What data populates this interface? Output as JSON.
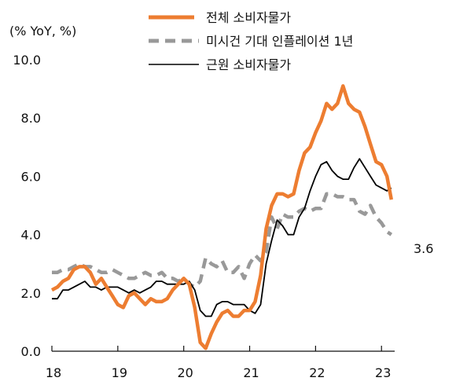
{
  "chart_data": {
    "type": "line",
    "ylabel": "(% YoY, %)",
    "x_tick_labels": [
      "18",
      "19",
      "20",
      "21",
      "22",
      "23"
    ],
    "x_tick_values": [
      2018,
      2019,
      2020,
      2021,
      2022,
      2023
    ],
    "y_tick_labels": [
      "0.0",
      "2.0",
      "4.0",
      "6.0",
      "8.0",
      "10.0"
    ],
    "y_tick_values": [
      0,
      2,
      4,
      6,
      8,
      10
    ],
    "xlim": [
      2018,
      2023.2
    ],
    "ylim": [
      0,
      10
    ],
    "grid": false,
    "legend_position": "top-right",
    "annotation": "3.6",
    "series": [
      {
        "name": "전체 소비자물가",
        "color": "#ed7d31",
        "style": "solid-thick",
        "points": [
          [
            2018.0,
            2.1
          ],
          [
            2018.083,
            2.2
          ],
          [
            2018.167,
            2.4
          ],
          [
            2018.25,
            2.5
          ],
          [
            2018.333,
            2.8
          ],
          [
            2018.417,
            2.9
          ],
          [
            2018.5,
            2.9
          ],
          [
            2018.583,
            2.7
          ],
          [
            2018.667,
            2.3
          ],
          [
            2018.75,
            2.5
          ],
          [
            2018.833,
            2.2
          ],
          [
            2018.917,
            1.9
          ],
          [
            2019.0,
            1.6
          ],
          [
            2019.083,
            1.5
          ],
          [
            2019.167,
            1.9
          ],
          [
            2019.25,
            2.0
          ],
          [
            2019.333,
            1.8
          ],
          [
            2019.417,
            1.6
          ],
          [
            2019.5,
            1.8
          ],
          [
            2019.583,
            1.7
          ],
          [
            2019.667,
            1.7
          ],
          [
            2019.75,
            1.8
          ],
          [
            2019.833,
            2.1
          ],
          [
            2019.917,
            2.3
          ],
          [
            2020.0,
            2.5
          ],
          [
            2020.083,
            2.3
          ],
          [
            2020.167,
            1.5
          ],
          [
            2020.25,
            0.3
          ],
          [
            2020.333,
            0.1
          ],
          [
            2020.417,
            0.6
          ],
          [
            2020.5,
            1.0
          ],
          [
            2020.583,
            1.3
          ],
          [
            2020.667,
            1.4
          ],
          [
            2020.75,
            1.2
          ],
          [
            2020.833,
            1.2
          ],
          [
            2020.917,
            1.4
          ],
          [
            2021.0,
            1.4
          ],
          [
            2021.083,
            1.7
          ],
          [
            2021.167,
            2.6
          ],
          [
            2021.25,
            4.2
          ],
          [
            2021.333,
            5.0
          ],
          [
            2021.417,
            5.4
          ],
          [
            2021.5,
            5.4
          ],
          [
            2021.583,
            5.3
          ],
          [
            2021.667,
            5.4
          ],
          [
            2021.75,
            6.2
          ],
          [
            2021.833,
            6.8
          ],
          [
            2021.917,
            7.0
          ],
          [
            2022.0,
            7.5
          ],
          [
            2022.083,
            7.9
          ],
          [
            2022.167,
            8.5
          ],
          [
            2022.25,
            8.3
          ],
          [
            2022.333,
            8.5
          ],
          [
            2022.417,
            9.1
          ],
          [
            2022.5,
            8.5
          ],
          [
            2022.583,
            8.3
          ],
          [
            2022.667,
            8.2
          ],
          [
            2022.75,
            7.7
          ],
          [
            2022.833,
            7.1
          ],
          [
            2022.917,
            6.5
          ],
          [
            2023.0,
            6.4
          ],
          [
            2023.083,
            6.0
          ],
          [
            2023.15,
            5.2
          ]
        ]
      },
      {
        "name": "미시건 기대 인플레이션 1년",
        "color": "#999999",
        "style": "dashed",
        "points": [
          [
            2018.0,
            2.7
          ],
          [
            2018.083,
            2.7
          ],
          [
            2018.167,
            2.8
          ],
          [
            2018.25,
            2.8
          ],
          [
            2018.333,
            2.9
          ],
          [
            2018.417,
            3.0
          ],
          [
            2018.5,
            2.9
          ],
          [
            2018.583,
            2.9
          ],
          [
            2018.667,
            2.8
          ],
          [
            2018.75,
            2.7
          ],
          [
            2018.833,
            2.7
          ],
          [
            2018.917,
            2.8
          ],
          [
            2019.0,
            2.7
          ],
          [
            2019.083,
            2.6
          ],
          [
            2019.167,
            2.5
          ],
          [
            2019.25,
            2.5
          ],
          [
            2019.333,
            2.6
          ],
          [
            2019.417,
            2.7
          ],
          [
            2019.5,
            2.6
          ],
          [
            2019.583,
            2.6
          ],
          [
            2019.667,
            2.7
          ],
          [
            2019.75,
            2.5
          ],
          [
            2019.833,
            2.5
          ],
          [
            2019.917,
            2.4
          ],
          [
            2020.0,
            2.5
          ],
          [
            2020.083,
            2.3
          ],
          [
            2020.167,
            2.2
          ],
          [
            2020.25,
            2.4
          ],
          [
            2020.333,
            3.2
          ],
          [
            2020.417,
            3.0
          ],
          [
            2020.5,
            2.9
          ],
          [
            2020.583,
            3.1
          ],
          [
            2020.667,
            2.7
          ],
          [
            2020.75,
            2.7
          ],
          [
            2020.833,
            2.9
          ],
          [
            2020.917,
            2.5
          ],
          [
            2021.0,
            3.0
          ],
          [
            2021.083,
            3.3
          ],
          [
            2021.167,
            3.1
          ],
          [
            2021.25,
            3.4
          ],
          [
            2021.333,
            4.6
          ],
          [
            2021.417,
            4.2
          ],
          [
            2021.5,
            4.7
          ],
          [
            2021.583,
            4.6
          ],
          [
            2021.667,
            4.6
          ],
          [
            2021.75,
            4.8
          ],
          [
            2021.833,
            4.9
          ],
          [
            2021.917,
            4.8
          ],
          [
            2022.0,
            4.9
          ],
          [
            2022.083,
            4.9
          ],
          [
            2022.167,
            5.4
          ],
          [
            2022.25,
            5.4
          ],
          [
            2022.333,
            5.3
          ],
          [
            2022.417,
            5.3
          ],
          [
            2022.5,
            5.2
          ],
          [
            2022.583,
            5.2
          ],
          [
            2022.667,
            4.8
          ],
          [
            2022.75,
            4.7
          ],
          [
            2022.833,
            5.0
          ],
          [
            2022.917,
            4.6
          ],
          [
            2023.0,
            4.4
          ],
          [
            2023.083,
            4.1
          ],
          [
            2023.15,
            4.0
          ]
        ]
      },
      {
        "name": "근원 소비자물가",
        "color": "#000000",
        "style": "solid-thin",
        "points": [
          [
            2018.0,
            1.8
          ],
          [
            2018.083,
            1.8
          ],
          [
            2018.167,
            2.1
          ],
          [
            2018.25,
            2.1
          ],
          [
            2018.333,
            2.2
          ],
          [
            2018.417,
            2.3
          ],
          [
            2018.5,
            2.4
          ],
          [
            2018.583,
            2.2
          ],
          [
            2018.667,
            2.2
          ],
          [
            2018.75,
            2.1
          ],
          [
            2018.833,
            2.2
          ],
          [
            2018.917,
            2.2
          ],
          [
            2019.0,
            2.2
          ],
          [
            2019.083,
            2.1
          ],
          [
            2019.167,
            2.0
          ],
          [
            2019.25,
            2.1
          ],
          [
            2019.333,
            2.0
          ],
          [
            2019.417,
            2.1
          ],
          [
            2019.5,
            2.2
          ],
          [
            2019.583,
            2.4
          ],
          [
            2019.667,
            2.4
          ],
          [
            2019.75,
            2.3
          ],
          [
            2019.833,
            2.3
          ],
          [
            2019.917,
            2.3
          ],
          [
            2020.0,
            2.3
          ],
          [
            2020.083,
            2.4
          ],
          [
            2020.167,
            2.1
          ],
          [
            2020.25,
            1.4
          ],
          [
            2020.333,
            1.2
          ],
          [
            2020.417,
            1.2
          ],
          [
            2020.5,
            1.6
          ],
          [
            2020.583,
            1.7
          ],
          [
            2020.667,
            1.7
          ],
          [
            2020.75,
            1.6
          ],
          [
            2020.833,
            1.6
          ],
          [
            2020.917,
            1.6
          ],
          [
            2021.0,
            1.4
          ],
          [
            2021.083,
            1.3
          ],
          [
            2021.167,
            1.6
          ],
          [
            2021.25,
            3.0
          ],
          [
            2021.333,
            3.8
          ],
          [
            2021.417,
            4.5
          ],
          [
            2021.5,
            4.3
          ],
          [
            2021.583,
            4.0
          ],
          [
            2021.667,
            4.0
          ],
          [
            2021.75,
            4.6
          ],
          [
            2021.833,
            4.9
          ],
          [
            2021.917,
            5.5
          ],
          [
            2022.0,
            6.0
          ],
          [
            2022.083,
            6.4
          ],
          [
            2022.167,
            6.5
          ],
          [
            2022.25,
            6.2
          ],
          [
            2022.333,
            6.0
          ],
          [
            2022.417,
            5.9
          ],
          [
            2022.5,
            5.9
          ],
          [
            2022.583,
            6.3
          ],
          [
            2022.667,
            6.6
          ],
          [
            2022.75,
            6.3
          ],
          [
            2022.833,
            6.0
          ],
          [
            2022.917,
            5.7
          ],
          [
            2023.0,
            5.6
          ],
          [
            2023.083,
            5.5
          ],
          [
            2023.15,
            5.6
          ]
        ]
      }
    ]
  }
}
